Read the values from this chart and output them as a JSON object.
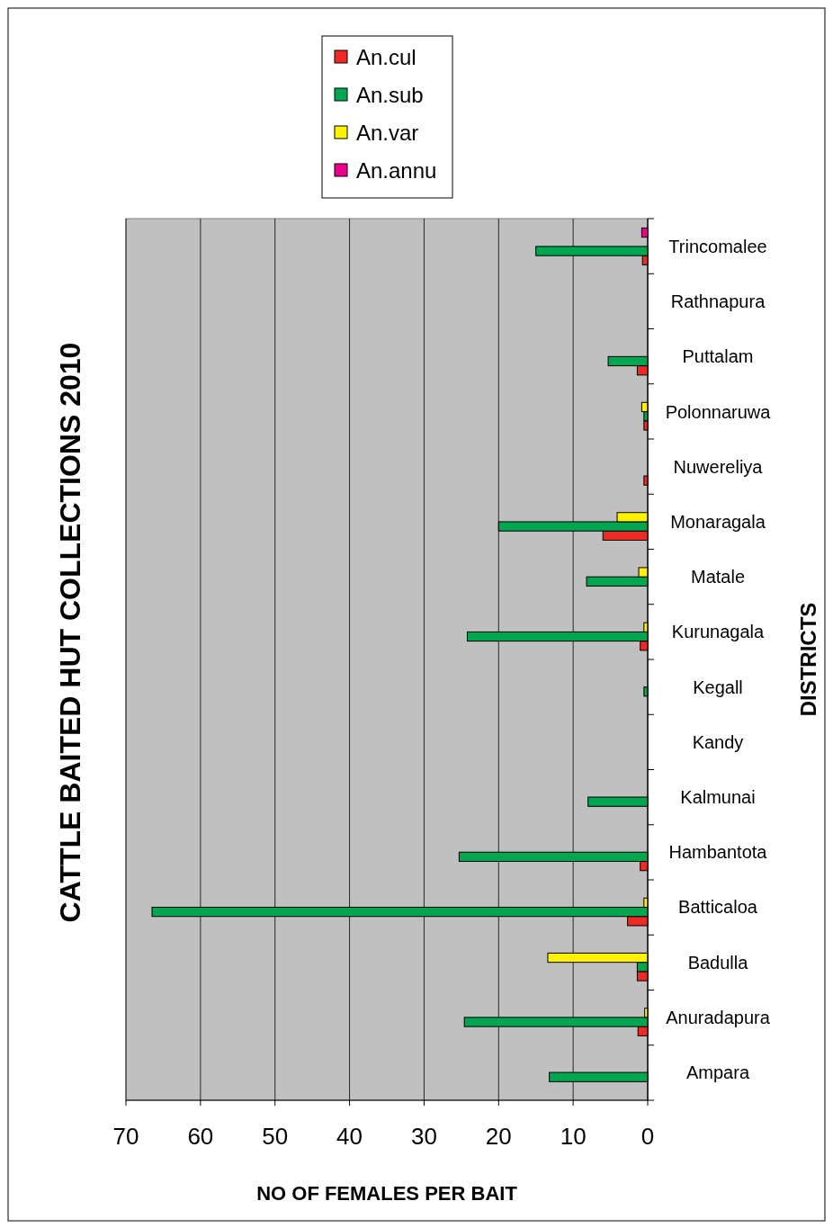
{
  "chart_data": {
    "type": "bar",
    "orientation": "horizontal",
    "title": "CATTLE BAITED HUT COLLECTIONS 2010",
    "xlabel": "NO OF FEMALES PER BAIT",
    "ylabel": "DISTRICTS",
    "categories": [
      "Trincomalee",
      "Rathnapura",
      "Puttalam",
      "Polonnaruwa",
      "Nuwereliya",
      "Monaragala",
      "Matale",
      "Kurunagala",
      "Kegall",
      "Kandy",
      "Kalmunai",
      "Hambantota",
      "Batticaloa",
      "Badulla",
      "Anuradapura",
      "Ampara"
    ],
    "series": [
      {
        "name": "An.cul",
        "color": "#ee2a24",
        "values": [
          0.7,
          0,
          1.4,
          0.5,
          0.5,
          6.0,
          0,
          1.0,
          0,
          0,
          0,
          1.0,
          2.7,
          1.4,
          1.3,
          0
        ]
      },
      {
        "name": "An.sub",
        "color": "#00a650",
        "values": [
          15.0,
          0,
          5.3,
          0.5,
          0,
          20.0,
          8.2,
          24.2,
          0.5,
          0,
          8.0,
          25.3,
          66.5,
          1.4,
          24.6,
          13.2
        ]
      },
      {
        "name": "An.var",
        "color": "#fff200",
        "values": [
          0,
          0,
          0,
          0.8,
          0,
          4.1,
          1.2,
          0.5,
          0,
          0,
          0,
          0,
          0.5,
          13.4,
          0.4,
          0
        ]
      },
      {
        "name": "An.annu",
        "color": "#ec008c",
        "values": [
          0.8,
          0,
          0,
          0,
          0,
          0,
          0,
          0,
          0,
          0,
          0,
          0,
          0,
          0,
          0,
          0
        ]
      }
    ],
    "xlim": [
      70,
      0
    ],
    "xticks": [
      70,
      60,
      50,
      40,
      30,
      20,
      10,
      0
    ],
    "grid": "x",
    "legend": "top"
  }
}
